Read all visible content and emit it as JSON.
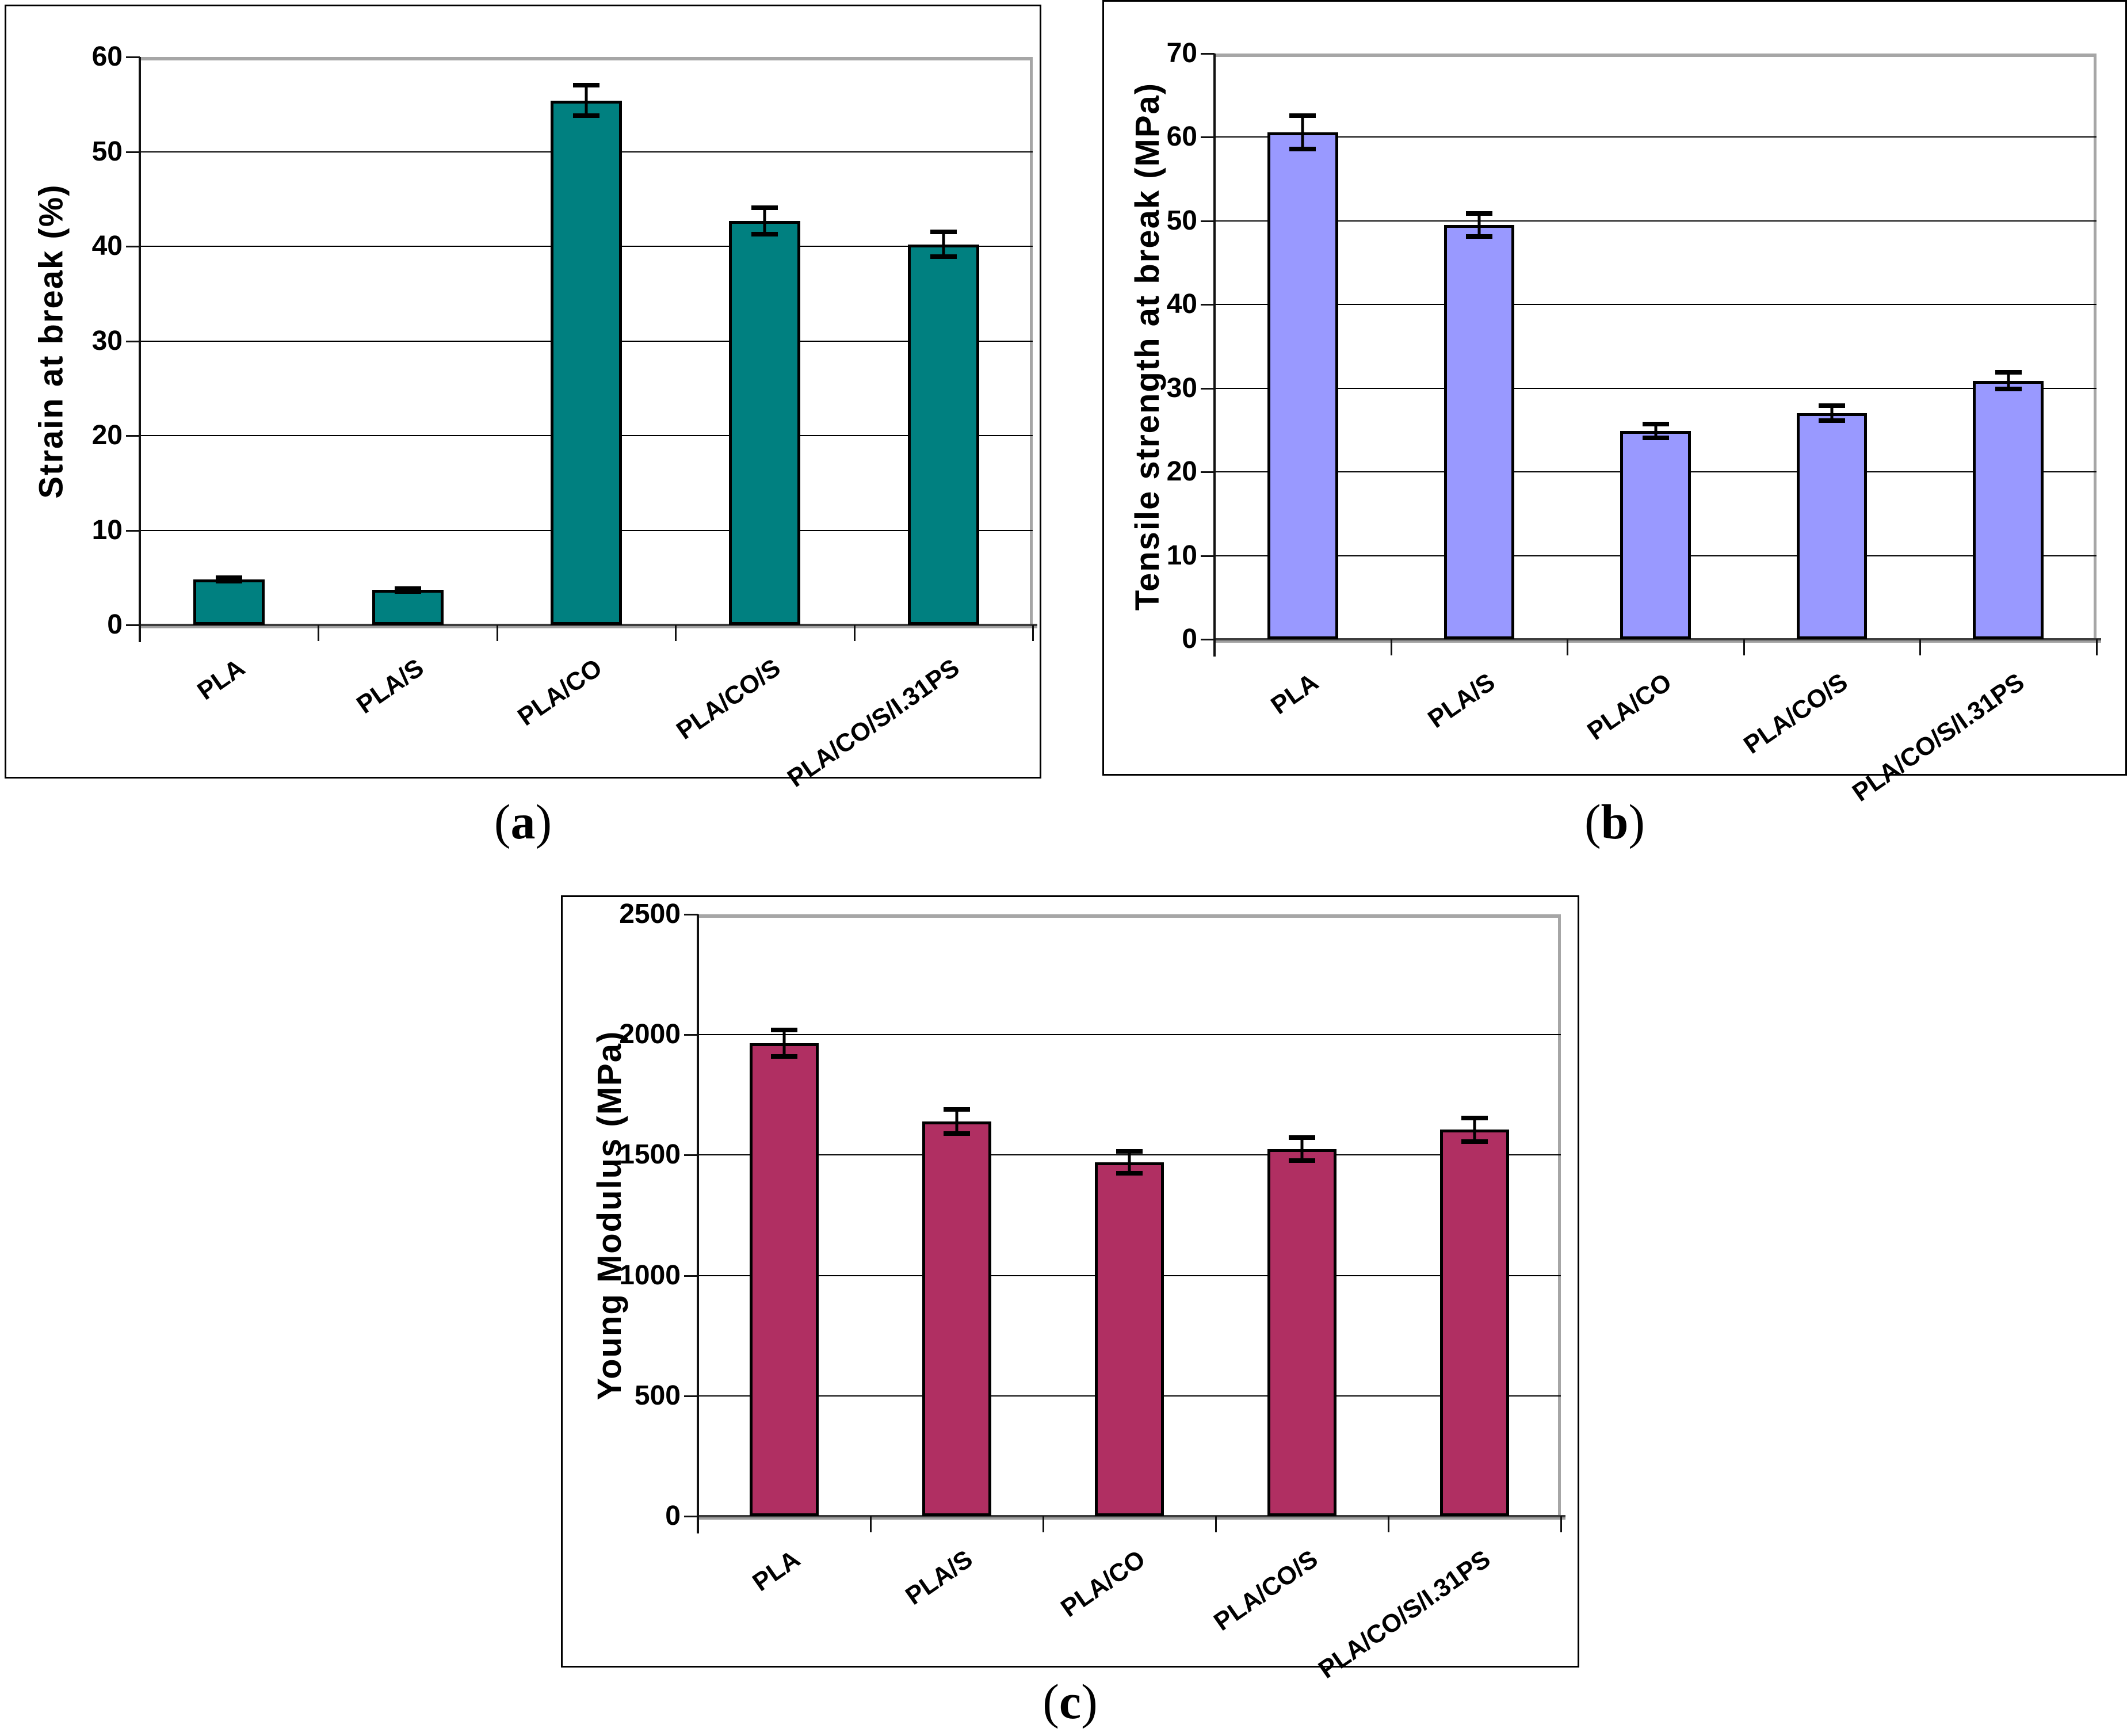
{
  "page": {
    "background": "#ffffff"
  },
  "figure": {
    "captions": {
      "a": {
        "open": "(",
        "letter": "a",
        "close": ")"
      },
      "b": {
        "open": "(",
        "letter": "b",
        "close": ")"
      },
      "c": {
        "open": "(",
        "letter": "c",
        "close": ")"
      }
    }
  },
  "chart_data": [
    {
      "id": "a",
      "type": "bar",
      "title": "",
      "ylabel": "Strain at break (%)",
      "xlabel": "",
      "categories": [
        "PLA",
        "PLA/S",
        "PLA/CO",
        "PLA/CO/S",
        "PLA/CO/S/I.31PS"
      ],
      "values": [
        4.8,
        3.7,
        55.4,
        42.7,
        40.2
      ],
      "errors": [
        0.2,
        0.15,
        1.6,
        1.4,
        1.3
      ],
      "ylim": [
        0,
        60
      ],
      "yticks": [
        0,
        10,
        20,
        30,
        40,
        50,
        60
      ],
      "grid": true,
      "legend": false,
      "bar_color": "#008080",
      "bar_border_color": "#000000",
      "caption_label": "(a)"
    },
    {
      "id": "b",
      "type": "bar",
      "title": "",
      "ylabel": "Tensile strength at break (MPa)",
      "xlabel": "",
      "categories": [
        "PLA",
        "PLA/S",
        "PLA/CO",
        "PLA/CO/S",
        "PLA/CO/S/I.31PS"
      ],
      "values": [
        60.6,
        49.5,
        24.9,
        27.0,
        30.9
      ],
      "errors": [
        2.0,
        1.4,
        0.8,
        0.9,
        1.0
      ],
      "ylim": [
        0,
        70
      ],
      "yticks": [
        0,
        10,
        20,
        30,
        40,
        50,
        60,
        70
      ],
      "grid": true,
      "legend": false,
      "bar_color": "#9999ff",
      "bar_border_color": "#000000",
      "caption_label": "(b)"
    },
    {
      "id": "c",
      "type": "bar",
      "title": "",
      "ylabel": "Young Modulus (MPa)",
      "xlabel": "",
      "categories": [
        "PLA",
        "PLA/S",
        "PLA/CO",
        "PLA/CO/S",
        "PLA/CO/S/I.31PS"
      ],
      "values": [
        1965,
        1640,
        1470,
        1525,
        1605
      ],
      "errors": [
        55,
        50,
        45,
        48,
        50
      ],
      "ylim": [
        0,
        2500
      ],
      "yticks": [
        0,
        500,
        1000,
        1500,
        2000,
        2500
      ],
      "grid": true,
      "legend": false,
      "bar_color": "#b02f62",
      "bar_border_color": "#000000",
      "caption_label": "(c)"
    }
  ]
}
